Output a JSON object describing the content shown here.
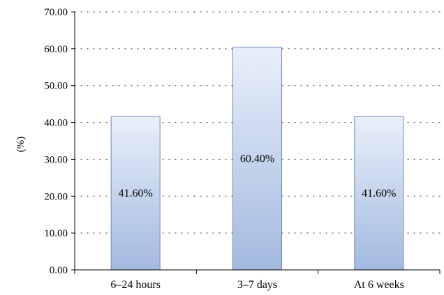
{
  "chart_data": {
    "type": "bar",
    "title": "",
    "xlabel": "",
    "ylabel": "(%)",
    "categories": [
      "6–24 hours",
      "3–7 days",
      "At 6 weeks"
    ],
    "values": [
      41.6,
      60.4,
      41.6
    ],
    "data_labels": [
      "41.60%",
      "60.40%",
      "41.60%"
    ],
    "ylim": [
      0,
      70
    ],
    "yticks": [
      0,
      10,
      20,
      30,
      40,
      50,
      60,
      70
    ],
    "ytick_labels": [
      "0.00",
      "10.00",
      "20.00",
      "30.00",
      "40.00",
      "50.00",
      "60.00",
      "70.00"
    ],
    "grid": "horizontal dotted",
    "legend": "none",
    "colors": {
      "bar_top": "#e8f0fa",
      "bar_bottom": "#a3b9df",
      "bar_stroke": "#6f86c2",
      "axis": "#000000",
      "grid": "#555555"
    }
  }
}
